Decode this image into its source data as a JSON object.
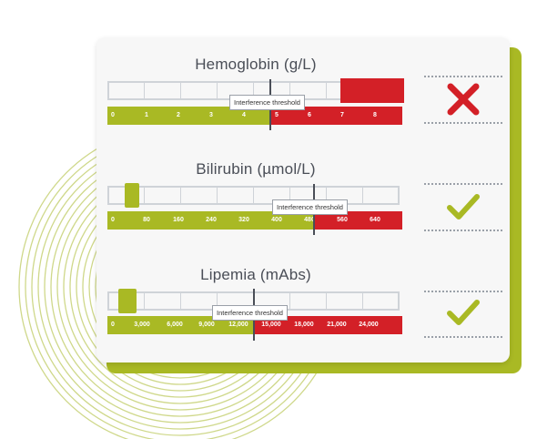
{
  "colors": {
    "ok_green": "#a9b924",
    "error_red": "#d32027",
    "text_gray": "#4a4e57"
  },
  "panels": [
    {
      "title": "Hemoglobin (g/L)",
      "threshold_label": "Interference threshold",
      "tick_labels": [
        "0",
        "1",
        "2",
        "3",
        "4",
        "5",
        "6",
        "7",
        "8"
      ],
      "status_icon": "cross-icon",
      "result_level_fraction_of_scale": 1.0
    },
    {
      "title": "Bilirubin (µmol/L)",
      "threshold_label": "Interference threshold",
      "tick_labels": [
        "0",
        "80",
        "160",
        "240",
        "320",
        "400",
        "480",
        "560",
        "640"
      ],
      "status_icon": "checkmark-icon",
      "result_level_fraction_of_scale": 0.08
    },
    {
      "title": "Lipemia (mAbs)",
      "threshold_label": "Interference threshold",
      "tick_labels": [
        "0",
        "3,000",
        "6,000",
        "9,000",
        "12,000",
        "15,000",
        "18,000",
        "21,000",
        "24,000"
      ],
      "status_icon": "checkmark-icon",
      "result_level_fraction_of_scale": 0.08
    }
  ]
}
